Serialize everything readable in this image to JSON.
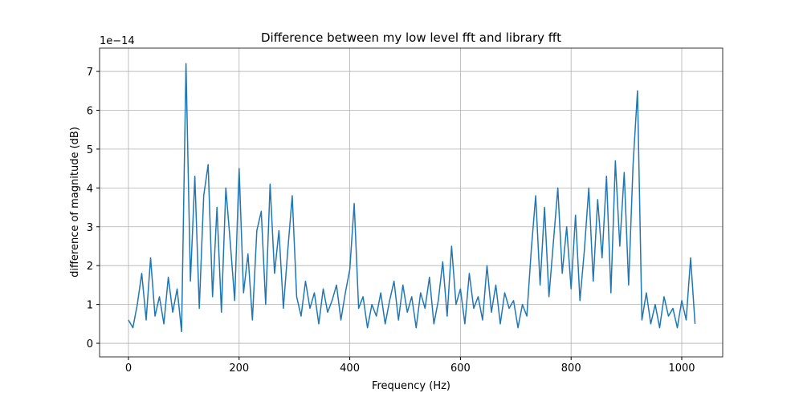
{
  "chart_data": {
    "type": "line",
    "title": "Difference between my low level fft and library fft",
    "x_label": "Frequency (Hz)",
    "y_label": "difference of magnitude (dB)",
    "y_offset_text": "1e−14",
    "x": [
      0,
      8,
      16,
      24,
      32,
      40,
      48,
      56,
      64,
      72,
      80,
      88,
      96,
      104,
      112,
      120,
      128,
      136,
      144,
      152,
      160,
      168,
      176,
      184,
      192,
      200,
      208,
      216,
      224,
      232,
      240,
      248,
      256,
      264,
      272,
      280,
      288,
      296,
      304,
      312,
      320,
      328,
      336,
      344,
      352,
      360,
      368,
      376,
      384,
      392,
      400,
      408,
      416,
      424,
      432,
      440,
      448,
      456,
      464,
      472,
      480,
      488,
      496,
      504,
      512,
      520,
      528,
      536,
      544,
      552,
      560,
      568,
      576,
      584,
      592,
      600,
      608,
      616,
      624,
      632,
      640,
      648,
      656,
      664,
      672,
      680,
      688,
      696,
      704,
      712,
      720,
      728,
      736,
      744,
      752,
      760,
      768,
      776,
      784,
      792,
      800,
      808,
      816,
      824,
      832,
      840,
      848,
      856,
      864,
      872,
      880,
      888,
      896,
      904,
      912,
      920,
      928,
      936,
      944,
      952,
      960,
      968,
      976,
      984,
      992,
      1000,
      1008,
      1016,
      1024
    ],
    "series": [
      {
        "name": "difference",
        "color": "#1f77b4",
        "values": [
          0.6,
          0.4,
          1.0,
          1.8,
          0.6,
          2.2,
          0.7,
          1.2,
          0.5,
          1.7,
          0.8,
          1.4,
          0.3,
          7.2,
          1.6,
          4.3,
          0.9,
          3.8,
          4.6,
          1.2,
          3.5,
          0.8,
          4.0,
          2.6,
          1.1,
          4.5,
          1.3,
          2.3,
          0.6,
          2.9,
          3.4,
          1.0,
          4.1,
          1.8,
          2.9,
          0.9,
          2.4,
          3.8,
          1.2,
          0.7,
          1.6,
          0.9,
          1.3,
          0.5,
          1.4,
          0.8,
          1.1,
          1.5,
          0.6,
          1.3,
          1.9,
          3.6,
          0.9,
          1.2,
          0.4,
          1.0,
          0.7,
          1.3,
          0.5,
          1.1,
          1.6,
          0.6,
          1.5,
          0.8,
          1.2,
          0.4,
          1.3,
          0.9,
          1.7,
          0.5,
          1.1,
          2.1,
          0.7,
          2.5,
          1.0,
          1.4,
          0.5,
          1.8,
          0.9,
          1.2,
          0.6,
          2.0,
          0.8,
          1.5,
          0.5,
          1.3,
          0.9,
          1.1,
          0.4,
          1.0,
          0.7,
          2.4,
          3.8,
          1.5,
          3.5,
          1.2,
          2.6,
          4.0,
          1.8,
          3.0,
          1.4,
          3.3,
          1.1,
          2.4,
          4.0,
          1.6,
          3.7,
          2.2,
          4.3,
          1.3,
          4.7,
          2.5,
          4.4,
          1.5,
          4.6,
          6.5,
          0.6,
          1.3,
          0.5,
          1.0,
          0.4,
          1.2,
          0.7,
          0.9,
          0.4,
          1.1,
          0.6,
          2.2,
          0.5
        ]
      }
    ],
    "xlim": [
      -52.2,
      1074
    ],
    "ylim": [
      -0.35,
      7.6
    ],
    "xticks": [
      0,
      200,
      400,
      600,
      800,
      1000
    ],
    "yticks": [
      0,
      1,
      2,
      3,
      4,
      5,
      6,
      7
    ],
    "grid": true
  }
}
